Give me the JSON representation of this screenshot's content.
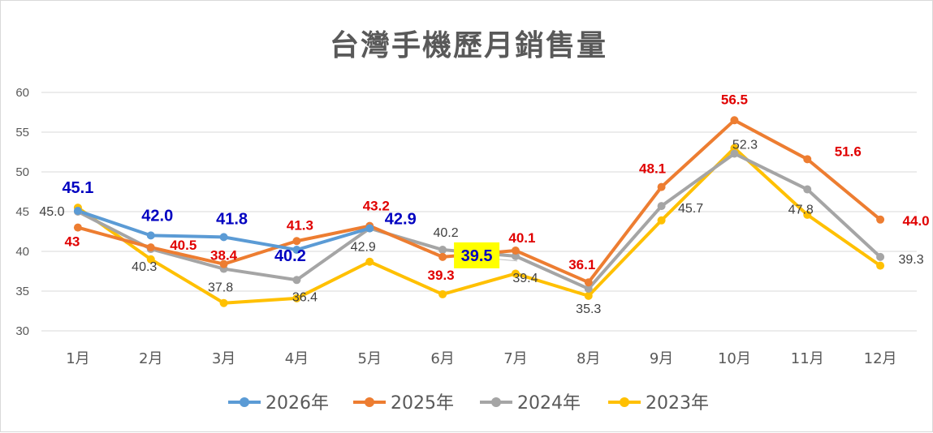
{
  "chart_data": {
    "type": "line",
    "title": "台灣手機歷月銷售量",
    "categories": [
      "1月",
      "2月",
      "3月",
      "4月",
      "5月",
      "6月",
      "7月",
      "8月",
      "9月",
      "10月",
      "11月",
      "12月"
    ],
    "ylim": [
      30,
      60
    ],
    "yticks": [
      "30",
      "35",
      "40",
      "45",
      "50",
      "55",
      "60"
    ],
    "grid": true,
    "legend_position": "bottom",
    "series": [
      {
        "name": "2026年",
        "color": "#5b9bd5",
        "values": [
          45.1,
          42.0,
          41.8,
          40.2,
          42.9,
          null,
          null,
          null,
          null,
          null,
          null,
          null
        ],
        "labels": [
          "45.1",
          "42.0",
          "41.8",
          "40.2",
          "42.9",
          "",
          "",
          "",
          "",
          "",
          "",
          ""
        ],
        "label_color": "#0000c0",
        "label_bold": true
      },
      {
        "name": "2025年",
        "color": "#ed7d31",
        "values": [
          43,
          40.5,
          38.4,
          41.3,
          43.2,
          39.3,
          40.1,
          36.1,
          48.1,
          56.5,
          51.6,
          44.0
        ],
        "labels": [
          "43",
          "40.5",
          "38.4",
          "41.3",
          "43.2",
          "39.3",
          "40.1",
          "36.1",
          "48.1",
          "56.5",
          "51.6",
          "44.0"
        ],
        "label_color": "#e00000",
        "label_bold": true
      },
      {
        "name": "2024年",
        "color": "#a5a5a5",
        "values": [
          45.0,
          40.3,
          37.8,
          36.4,
          42.9,
          40.2,
          39.4,
          35.3,
          45.7,
          52.3,
          47.8,
          39.3
        ],
        "labels": [
          "45.0",
          "40.3",
          "37.8",
          "36.4",
          "42.9",
          "40.2",
          "39.4",
          "35.3",
          "45.7",
          "52.3",
          "47.8",
          "39.3"
        ],
        "label_color": "#404040",
        "label_bold": false
      },
      {
        "name": "2023年",
        "color": "#ffc000",
        "values": [
          45.5,
          39.0,
          33.5,
          34.1,
          38.7,
          34.6,
          37.2,
          34.4,
          43.9,
          53.0,
          44.6,
          38.2
        ],
        "labels": [
          "",
          "",
          "",
          "",
          "",
          "",
          "",
          "",
          "",
          "",
          "",
          ""
        ],
        "label_color": "#404040",
        "label_bold": false
      }
    ],
    "callout": {
      "text": "39.5",
      "category": "6月",
      "background": "#ffff00",
      "color": "#0000c0"
    }
  }
}
